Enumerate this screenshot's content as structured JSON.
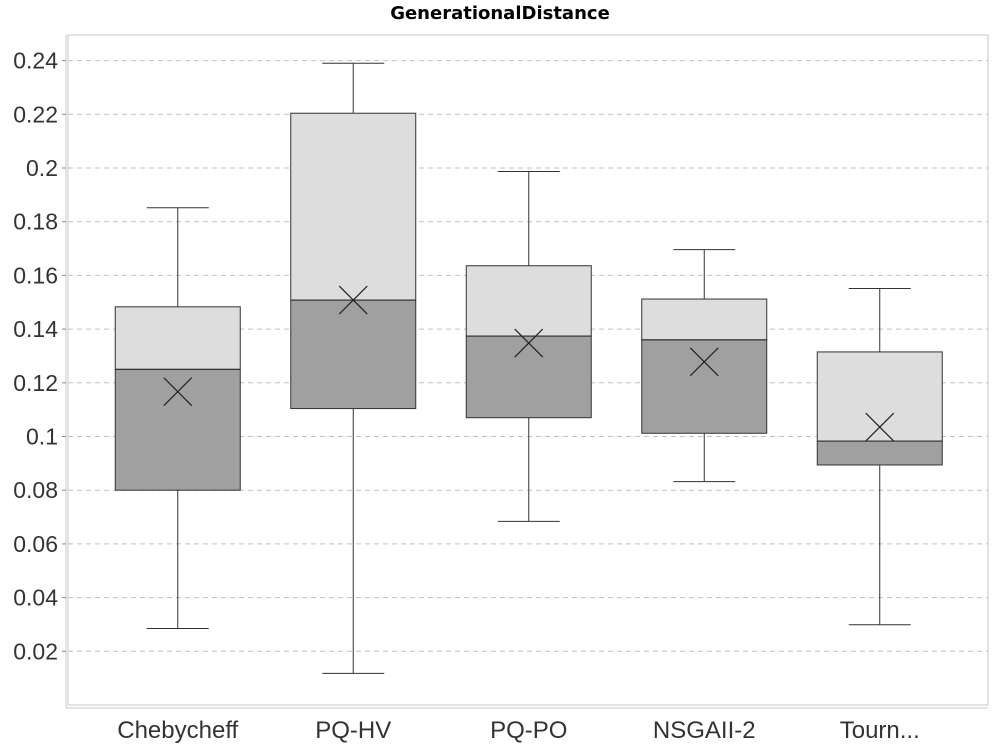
{
  "chart_data": {
    "type": "boxplot",
    "title": "GenerationalDistance",
    "xlabel": "",
    "ylabel": "",
    "ylim": [
      0.0,
      0.25
    ],
    "yticks": [
      0.02,
      0.04,
      0.06,
      0.08,
      0.1,
      0.12,
      0.14,
      0.16,
      0.18,
      0.2,
      0.22,
      0.24
    ],
    "ytick_labels": [
      "0.02",
      "0.04",
      "0.06",
      "0.08",
      "0.1",
      "0.12",
      "0.14",
      "0.16",
      "0.18",
      "0.2",
      "0.22",
      "0.24"
    ],
    "grid": true,
    "categories": [
      "Chebycheff",
      "PQ-HV",
      "PQ-PO",
      "NSGAII-2",
      "Tourn..."
    ],
    "boxes": [
      {
        "category": "Chebycheff",
        "min": 0.0285,
        "q1": 0.08,
        "median": 0.125,
        "q3": 0.1483,
        "max": 0.1852,
        "mean": 0.1167
      },
      {
        "category": "PQ-HV",
        "min": 0.0118,
        "q1": 0.1104,
        "median": 0.1508,
        "q3": 0.2204,
        "max": 0.239,
        "mean": 0.1508
      },
      {
        "category": "PQ-PO",
        "min": 0.0684,
        "q1": 0.107,
        "median": 0.1374,
        "q3": 0.1636,
        "max": 0.1987,
        "mean": 0.1348
      },
      {
        "category": "NSGAII-2",
        "min": 0.0832,
        "q1": 0.1012,
        "median": 0.136,
        "q3": 0.1512,
        "max": 0.1696,
        "mean": 0.1278
      },
      {
        "category": "Tourn...",
        "min": 0.0299,
        "q1": 0.0894,
        "median": 0.0983,
        "q3": 0.1315,
        "max": 0.1551,
        "mean": 0.1035
      }
    ],
    "colors": {
      "upper_box": "#dddddd",
      "lower_box": "#a0a0a0",
      "outline": "#333333",
      "grid": "#c0c0c0"
    }
  }
}
